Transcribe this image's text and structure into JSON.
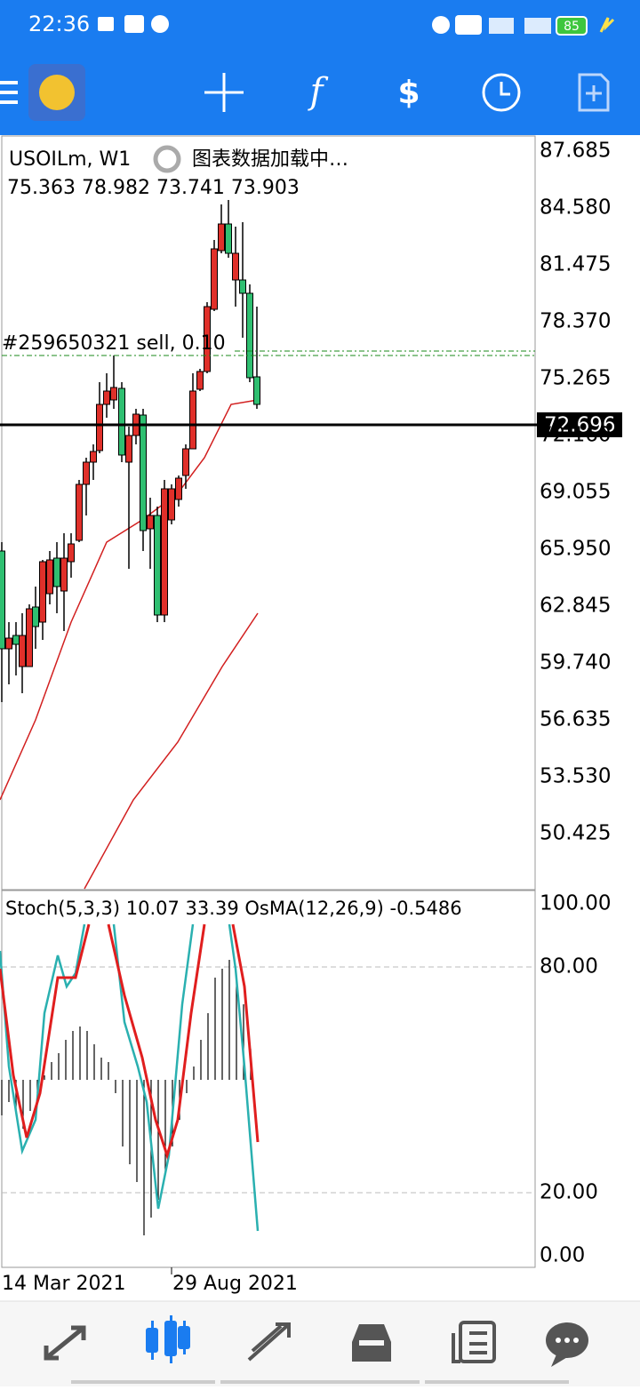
{
  "status_bar": {
    "time": "22:36",
    "battery": "85"
  },
  "chart": {
    "symbol": "USOILm, W1",
    "loading": "图表数据加载中…",
    "ohlc": "75.363 78.982 73.741 73.903",
    "order": "#259650321 sell, 0.10",
    "price_axis": [
      "87.685",
      "84.580",
      "81.475",
      "78.370",
      "75.265",
      "72.160",
      "69.055",
      "65.950",
      "62.845",
      "59.740",
      "56.635",
      "53.530",
      "50.425"
    ],
    "current_price": "72.696"
  },
  "indicator": {
    "label": "Stoch(5,3,3) 10.07 33.39 OsMA(12,26,9) -0.5486",
    "axis": [
      "100.00",
      "80.00",
      "20.00",
      "0.00"
    ]
  },
  "x_axis": [
    "14 Mar 2021",
    "29 Aug 2021"
  ]
}
